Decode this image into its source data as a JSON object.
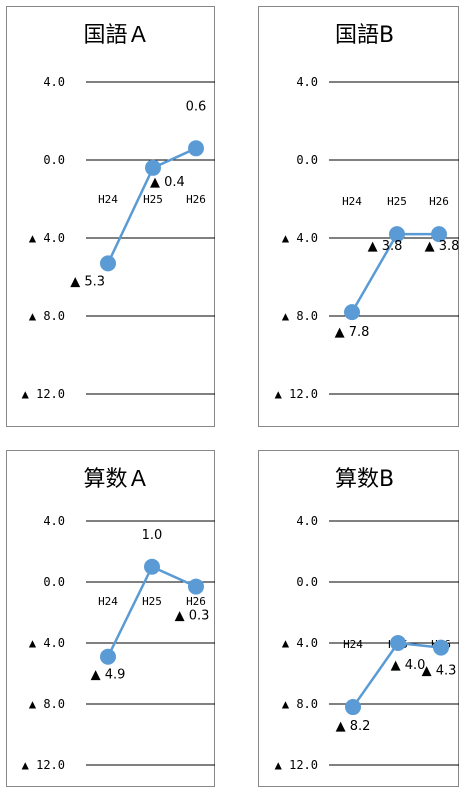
{
  "page": {
    "negative_prefix": "▲"
  },
  "chart_data": [
    {
      "type": "line",
      "title": "国語Ａ",
      "categories": [
        "H24",
        "H25",
        "H26"
      ],
      "values": [
        -5.3,
        -0.4,
        0.6
      ],
      "data_labels": [
        "▲ 5.3",
        "▲ 0.4",
        "0.6"
      ],
      "ylim": [
        -12,
        4
      ],
      "ticks": [
        4,
        0,
        -4,
        -8,
        -12
      ],
      "tick_labels": [
        "4.0",
        "0.0",
        "▲ 4.0",
        "▲ 8.0",
        "▲ 12.0"
      ],
      "grid": true,
      "color": "#5b9bd5"
    },
    {
      "type": "line",
      "title": "国語B",
      "categories": [
        "H24",
        "H25",
        "H26"
      ],
      "values": [
        -7.8,
        -3.8,
        -3.8
      ],
      "data_labels": [
        "▲ 7.8",
        "▲ 3.8",
        "▲ 3.8"
      ],
      "ylim": [
        -12,
        4
      ],
      "ticks": [
        4,
        0,
        -4,
        -8,
        -12
      ],
      "tick_labels": [
        "4.0",
        "0.0",
        "▲ 4.0",
        "▲ 8.0",
        "▲ 12.0"
      ],
      "grid": true,
      "color": "#5b9bd5"
    },
    {
      "type": "line",
      "title": "算数Ａ",
      "categories": [
        "H24",
        "H25",
        "H26"
      ],
      "values": [
        -4.9,
        1.0,
        -0.3
      ],
      "data_labels": [
        "▲ 4.9",
        "1.0",
        "▲ 0.3"
      ],
      "ylim": [
        -12,
        4
      ],
      "ticks": [
        4,
        0,
        -4,
        -8,
        -12
      ],
      "tick_labels": [
        "4.0",
        "0.0",
        "▲ 4.0",
        "▲ 8.0",
        "▲ 12.0"
      ],
      "grid": true,
      "color": "#5b9bd5"
    },
    {
      "type": "line",
      "title": "算数B",
      "categories": [
        "H24",
        "H25",
        "H26"
      ],
      "values": [
        -8.2,
        -4.0,
        -4.3
      ],
      "data_labels": [
        "▲ 8.2",
        "▲ 4.0",
        "▲ 4.3"
      ],
      "ylim": [
        -12,
        4
      ],
      "ticks": [
        4,
        0,
        -4,
        -8,
        -12
      ],
      "tick_labels": [
        "4.0",
        "0.0",
        "▲ 4.0",
        "▲ 8.0",
        "▲ 12.0"
      ],
      "grid": true,
      "color": "#5b9bd5"
    }
  ]
}
